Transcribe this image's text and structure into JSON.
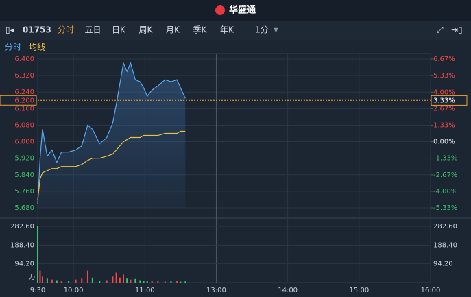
{
  "toolbar": {
    "logo": "华盛通",
    "code": "01753",
    "tabs": [
      "分时",
      "五日",
      "日K",
      "周K",
      "月K",
      "季K",
      "年K"
    ],
    "interval": "1分",
    "legend": [
      "分时",
      "均线"
    ]
  },
  "chart_data": {
    "type": "line",
    "x": [
      0,
      2,
      4,
      8,
      12,
      16,
      20,
      26,
      32,
      37,
      42,
      46,
      52,
      58,
      63,
      66,
      69,
      72,
      75,
      78,
      82,
      86,
      89,
      92,
      96,
      101,
      107,
      112,
      117,
      120,
      124
    ],
    "xlim": [
      0,
      330
    ],
    "xticks": [
      {
        "value": 0,
        "label": "9:30"
      },
      {
        "value": 30,
        "label": "10:00"
      },
      {
        "value": 90,
        "label": "11:00"
      },
      {
        "value": 150,
        "label": "13:00"
      },
      {
        "value": 210,
        "label": "14:00"
      },
      {
        "value": 270,
        "label": "15:00"
      },
      {
        "value": 330,
        "label": "16:00"
      }
    ],
    "series": [
      {
        "name": "分时",
        "color": "#5aa9f0",
        "values": [
          5.7,
          5.92,
          6.06,
          5.93,
          5.96,
          5.9,
          5.95,
          5.95,
          5.96,
          5.98,
          6.08,
          6.06,
          5.99,
          6.02,
          6.09,
          6.18,
          6.28,
          6.38,
          6.34,
          6.38,
          6.3,
          6.29,
          6.26,
          6.22,
          6.25,
          6.27,
          6.3,
          6.29,
          6.3,
          6.26,
          6.21
        ]
      },
      {
        "name": "均线",
        "color": "#f0c040",
        "values": [
          5.72,
          5.82,
          5.85,
          5.86,
          5.87,
          5.87,
          5.88,
          5.88,
          5.88,
          5.89,
          5.91,
          5.92,
          5.92,
          5.93,
          5.94,
          5.96,
          5.98,
          6.0,
          6.01,
          6.02,
          6.02,
          6.02,
          6.03,
          6.03,
          6.03,
          6.03,
          6.04,
          6.04,
          6.04,
          6.05,
          6.05
        ]
      }
    ],
    "ylim": [
      5.68,
      6.4
    ],
    "yticks": [
      {
        "value": 6.4,
        "label": "6.400"
      },
      {
        "value": 6.32,
        "label": "6.320"
      },
      {
        "value": 6.24,
        "label": "6.240"
      },
      {
        "value": 6.16,
        "label": "6.160"
      },
      {
        "value": 6.08,
        "label": "6.080"
      },
      {
        "value": 6.0,
        "label": "6.000"
      },
      {
        "value": 5.92,
        "label": "5.920"
      },
      {
        "value": 5.84,
        "label": "5.840"
      },
      {
        "value": 5.76,
        "label": "5.760"
      },
      {
        "value": 5.68,
        "label": "5.680"
      }
    ],
    "y2lim": [
      -5.33,
      6.67
    ],
    "y2ticks": [
      {
        "value": 6.67,
        "label": "6.67%"
      },
      {
        "value": 5.33,
        "label": "5.33%"
      },
      {
        "value": 4.0,
        "label": "4.00%"
      },
      {
        "value": 2.67,
        "label": "2.67%"
      },
      {
        "value": 1.33,
        "label": "1.33%"
      },
      {
        "value": 0.0,
        "label": "0.00%"
      },
      {
        "value": -1.33,
        "label": "-1.33%"
      },
      {
        "value": -2.67,
        "label": "-2.67%"
      },
      {
        "value": -4.0,
        "label": "-4.00%"
      },
      {
        "value": -5.33,
        "label": "-5.33%"
      }
    ],
    "last_price": {
      "value": 6.2,
      "label": "6.200"
    },
    "last_pct": {
      "value": 3.33,
      "label": "3.33%"
    },
    "up_color": "#f04848",
    "down_color": "#3ec46d",
    "volume": {
      "unit": "万",
      "ylim": [
        0,
        282.6
      ],
      "yticks": [
        {
          "value": 282.6,
          "label": "282.60"
        },
        {
          "value": 188.4,
          "label": "188.40"
        },
        {
          "value": 94.2,
          "label": "94.20"
        }
      ],
      "values": [
        282.6,
        60,
        30,
        20,
        15,
        12,
        10,
        8,
        15,
        20,
        60,
        25,
        10,
        12,
        30,
        50,
        25,
        40,
        20,
        15,
        18,
        12,
        10,
        8,
        10,
        8,
        6,
        8,
        7,
        5,
        6
      ],
      "colors": [
        "#3ec46d",
        "#f04848",
        "#f04848",
        "#3ec46d",
        "#f04848",
        "#3ec46d",
        "#f04848",
        "#3ec46d",
        "#f04848",
        "#f04848",
        "#f04848",
        "#3ec46d",
        "#3ec46d",
        "#f04848",
        "#f04848",
        "#f04848",
        "#f04848",
        "#f04848",
        "#3ec46d",
        "#f04848",
        "#3ec46d",
        "#3ec46d",
        "#3ec46d",
        "#3ec46d",
        "#f04848",
        "#f04848",
        "#f04848",
        "#3ec46d",
        "#f04848",
        "#3ec46d",
        "#3ec46d"
      ]
    }
  }
}
